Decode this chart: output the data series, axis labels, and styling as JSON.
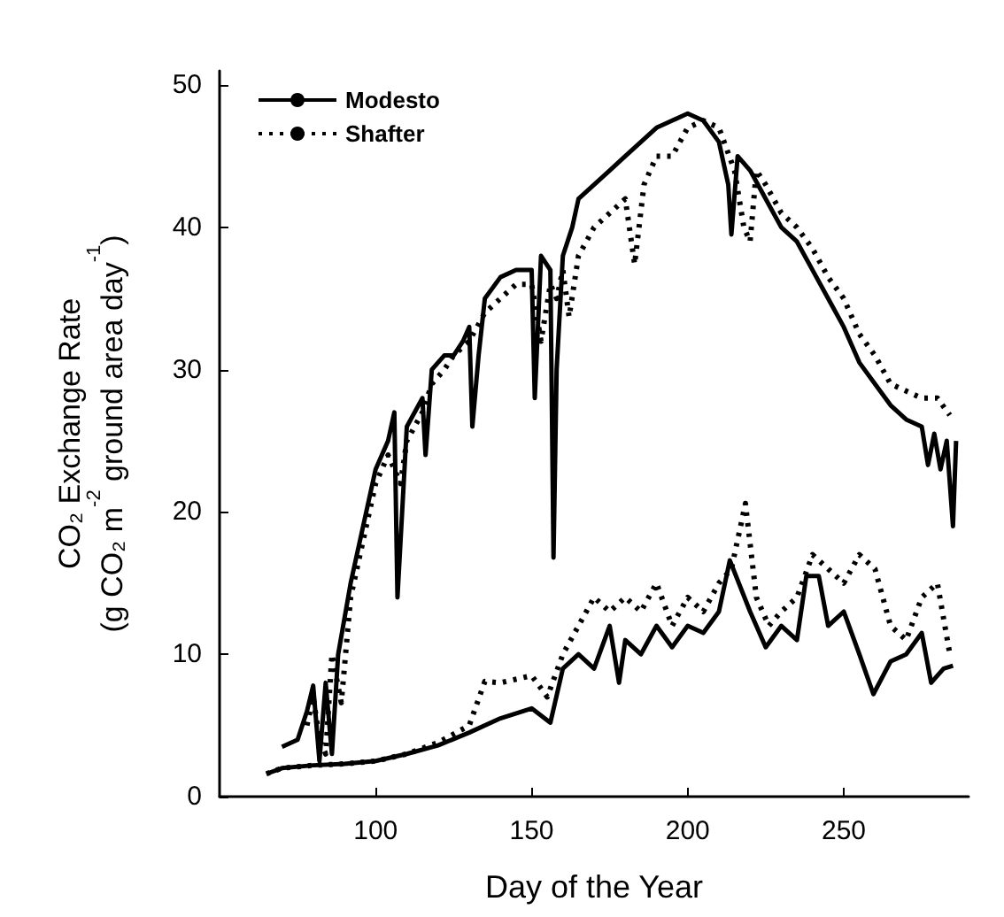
{
  "chart_data": {
    "type": "line",
    "xlabel": "Day of the Year",
    "ylabel": "CO₂ Exchange Rate\n(g CO₂ m$^{-2}$ ground area day$^{-1}$)",
    "xlim": [
      50,
      290
    ],
    "ylim": [
      0,
      51
    ],
    "xticks": [
      100,
      150,
      200,
      250
    ],
    "yticks": [
      0,
      10,
      20,
      30,
      40,
      50
    ],
    "grid": false,
    "legend": "top left",
    "marker": "none",
    "series": [
      {
        "name": "Modesto",
        "color": "#000000",
        "line_style": "solid",
        "x": [
          70,
          75,
          78,
          80,
          82,
          84,
          86,
          88,
          92,
          96,
          100,
          104,
          106,
          107,
          110,
          115,
          116,
          118,
          122,
          125,
          128,
          130,
          131,
          133,
          135,
          140,
          145,
          150,
          151,
          153,
          156,
          157,
          158,
          160,
          163,
          165,
          170,
          175,
          180,
          185,
          190,
          195,
          200,
          205,
          210,
          213,
          214,
          216,
          220,
          225,
          230,
          235,
          240,
          245,
          250,
          255,
          260,
          265,
          270,
          275,
          277,
          279,
          281,
          283,
          285,
          286
        ],
        "values": [
          3.5,
          4,
          6,
          7.8,
          2.5,
          8,
          3,
          10,
          15,
          19,
          23,
          25,
          27,
          14,
          26,
          28,
          24,
          30,
          31,
          31,
          32,
          33,
          26,
          31,
          35,
          36.5,
          37,
          37,
          28,
          38,
          37,
          16.8,
          30,
          38,
          40,
          42,
          43,
          44,
          45,
          46,
          47,
          47.5,
          48,
          47.5,
          46,
          43,
          39.5,
          45,
          44,
          42,
          40,
          39,
          37,
          35,
          33,
          30.5,
          29,
          27.5,
          26.5,
          26,
          23.3,
          25.5,
          23,
          25,
          19,
          25
        ]
      },
      {
        "name": "Shafter",
        "color": "#000000",
        "line_style": "dotted",
        "x": [
          78,
          80,
          82,
          84,
          86,
          89,
          92,
          96,
          100,
          104,
          108,
          110,
          115,
          118,
          122,
          125,
          130,
          135,
          140,
          145,
          150,
          153,
          156,
          158,
          160,
          162,
          165,
          170,
          175,
          180,
          183,
          186,
          190,
          195,
          200,
          205,
          210,
          215,
          218,
          220,
          222,
          225,
          230,
          235,
          240,
          245,
          250,
          255,
          260,
          265,
          270,
          275,
          280,
          284
        ],
        "values": [
          5,
          7,
          4,
          3,
          10,
          6.6,
          14,
          18,
          22,
          24,
          22,
          25,
          27,
          29,
          30,
          31,
          32,
          34,
          35,
          36,
          36,
          32,
          36,
          35,
          37,
          33.7,
          38,
          40,
          41,
          42,
          37.4,
          43,
          45,
          45,
          47,
          47.5,
          47,
          44,
          40,
          39,
          44,
          43,
          41,
          40,
          38.5,
          36.5,
          35,
          32.5,
          31,
          29,
          28.5,
          28,
          28,
          26.8
        ]
      },
      {
        "color": "#000000",
        "line_style": "solid",
        "x": [
          65,
          70,
          80,
          90,
          100,
          110,
          120,
          130,
          140,
          150,
          156,
          160,
          165,
          170,
          175,
          178,
          180,
          185,
          190,
          195,
          200,
          205,
          210,
          213.5,
          220,
          225,
          230,
          235,
          238,
          242,
          245,
          250,
          255,
          259.5,
          265,
          270,
          275,
          278,
          282,
          285
        ],
        "values": [
          1.6,
          2,
          2.2,
          2.3,
          2.5,
          3,
          3.6,
          4.5,
          5.5,
          6.2,
          5.2,
          9,
          10,
          9,
          12,
          8,
          11,
          10,
          12,
          10.5,
          12,
          11.5,
          13,
          16.6,
          13,
          10.5,
          12,
          11,
          15.5,
          15.5,
          12,
          13,
          10,
          7.2,
          9.5,
          10,
          11.5,
          8,
          9,
          9.2
        ]
      },
      {
        "color": "#000000",
        "line_style": "dotted",
        "x": [
          65,
          70,
          80,
          90,
          100,
          110,
          120,
          130,
          135,
          140,
          150,
          155,
          160,
          165,
          170,
          175,
          180,
          185,
          190,
          195,
          200,
          205,
          210,
          214,
          218.5,
          222,
          226,
          230,
          235,
          240,
          245,
          250,
          255,
          260,
          265,
          270,
          275,
          280,
          284
        ],
        "values": [
          1.6,
          2,
          2.2,
          2.3,
          2.5,
          3,
          3.8,
          5,
          8.1,
          8,
          8.5,
          7,
          10,
          12,
          14,
          13,
          14,
          13,
          15,
          12,
          14,
          13,
          15,
          16,
          20.6,
          14,
          12,
          13,
          14,
          17,
          16,
          15,
          17,
          16,
          12,
          11,
          14,
          15,
          10
        ]
      }
    ]
  }
}
